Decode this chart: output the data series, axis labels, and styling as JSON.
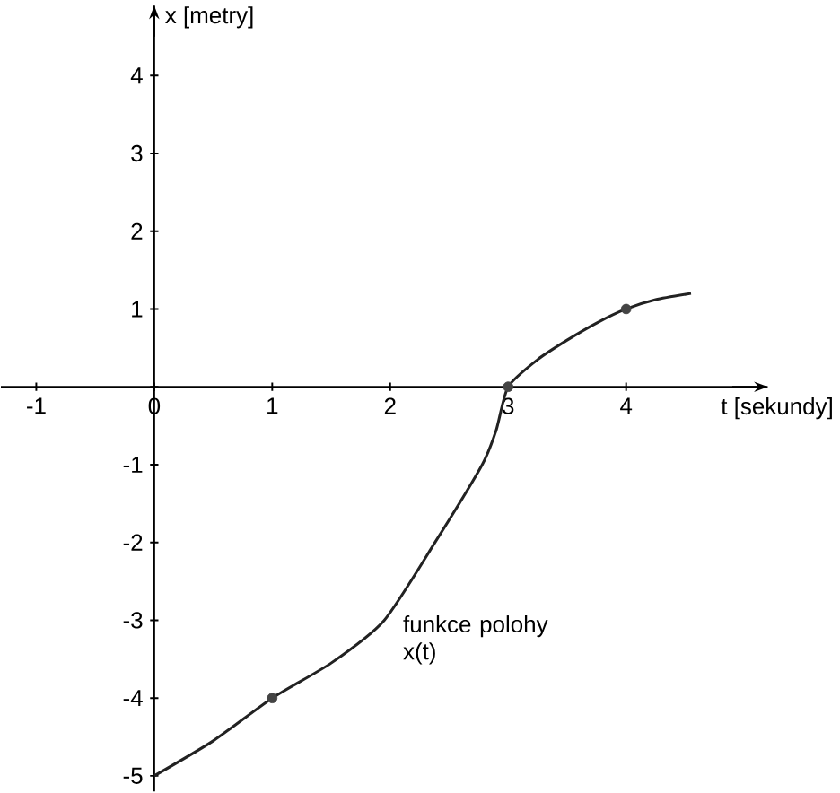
{
  "chart_data": {
    "type": "line",
    "xlabel": "t [sekundy]",
    "ylabel": "x [metry]",
    "xlim": [
      -1.3,
      5.2
    ],
    "ylim": [
      -5.2,
      4.9
    ],
    "xticks": [
      -1,
      0,
      1,
      2,
      3,
      4
    ],
    "yticks": [
      -5,
      -4,
      -3,
      -2,
      -1,
      {
        "value": 0,
        "label": null
      },
      1,
      2,
      3,
      4
    ],
    "series": [
      {
        "color": "#222222",
        "x": [
          0,
          0.5,
          1,
          1.5,
          1.95,
          2.38,
          2.78,
          2.9,
          3,
          3.25,
          3.5,
          3.75,
          4,
          4.25,
          4.55
        ],
        "values": [
          -5,
          -4.55,
          -4,
          -3.55,
          -3,
          -2,
          -1,
          -0.55,
          0,
          0.35,
          0.6,
          0.82,
          1,
          1.12,
          1.2
        ]
      },
      {
        "type": "scatter",
        "color": "#444444",
        "marker": "circle",
        "x": [
          1,
          3,
          4
        ],
        "values": [
          -4,
          0,
          1
        ]
      }
    ],
    "annotations": [
      "funkce polohy x(t)"
    ],
    "grid": false
  }
}
